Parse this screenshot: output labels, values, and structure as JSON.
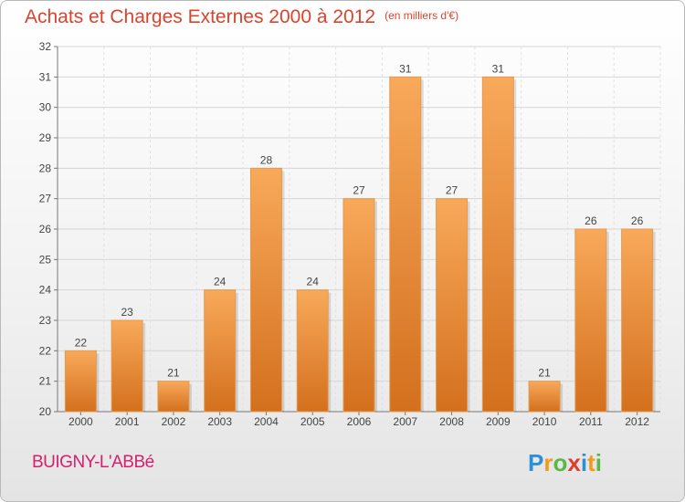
{
  "header": {
    "title": "Achats et Charges Externes 2000 à 2012",
    "unit": "(en milliers d'€)"
  },
  "footer": {
    "commune": "BUIGNY-L'ABBé",
    "logo_text": "Proxiti"
  },
  "colors": {
    "bar_top": "#f8a95a",
    "bar_bottom": "#d3701e",
    "title": "#d9442e",
    "commune": "#d61e6e"
  },
  "chart_data": {
    "type": "bar",
    "categories": [
      "2000",
      "2001",
      "2002",
      "2003",
      "2004",
      "2005",
      "2006",
      "2007",
      "2008",
      "2009",
      "2010",
      "2011",
      "2012"
    ],
    "values": [
      22,
      23,
      21,
      24,
      28,
      24,
      27,
      31,
      27,
      31,
      21,
      26,
      26
    ],
    "ylim": [
      20,
      32
    ],
    "yticks": [
      20,
      21,
      22,
      23,
      24,
      25,
      26,
      27,
      28,
      29,
      30,
      31,
      32
    ],
    "grid": true,
    "data_labels": true
  }
}
